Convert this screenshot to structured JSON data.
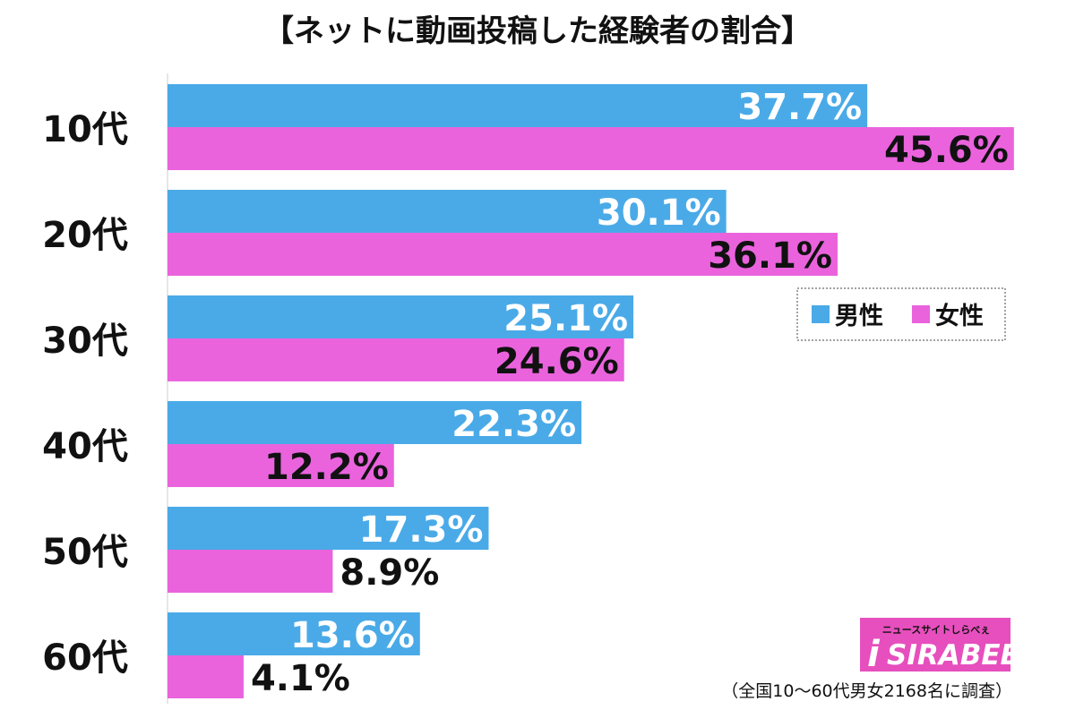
{
  "chart_data": {
    "type": "bar",
    "orientation": "horizontal",
    "title": "【ネットに動画投稿した経験者の割合】",
    "categories": [
      "10代",
      "20代",
      "30代",
      "40代",
      "50代",
      "60代"
    ],
    "series": [
      {
        "name": "男性",
        "color": "#4aaae8",
        "values": [
          37.7,
          30.1,
          25.1,
          22.3,
          17.3,
          13.6
        ],
        "labels": [
          "37.7%",
          "30.1%",
          "25.1%",
          "22.3%",
          "17.3%",
          "13.6%"
        ]
      },
      {
        "name": "女性",
        "color": "#ea63dd",
        "values": [
          45.6,
          36.1,
          24.6,
          12.2,
          8.9,
          4.1
        ],
        "labels": [
          "45.6%",
          "36.1%",
          "24.6%",
          "12.2%",
          "8.9%",
          "4.1%"
        ]
      }
    ],
    "xlim": [
      0,
      47
    ],
    "grid": false,
    "legend_position": "right",
    "note": "（全国10〜60代男女2168名に調査）"
  },
  "logo": {
    "tagline": "ニュースサイトしらべぇ",
    "name": "SIRABEE",
    "color": "#e64fbd"
  }
}
